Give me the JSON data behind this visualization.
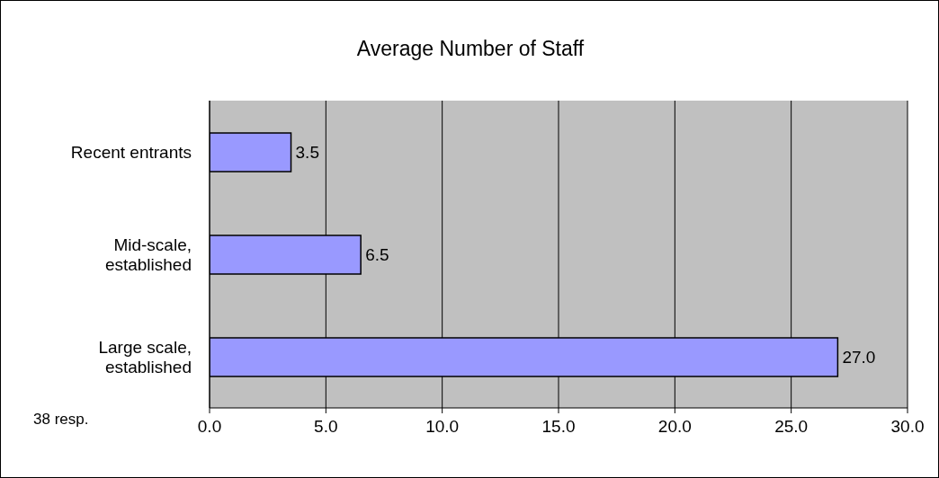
{
  "chart_data": {
    "type": "bar",
    "orientation": "horizontal",
    "title": "Average Number of Staff",
    "categories": [
      "Recent entrants",
      "Mid-scale, established",
      "Large scale, established"
    ],
    "values": [
      3.5,
      6.5,
      27.0
    ],
    "value_labels": [
      "3.5",
      "6.5",
      "27.0"
    ],
    "color": "#9999ff",
    "xlim": [
      0,
      30
    ],
    "xticks": [
      {
        "value": 0,
        "label": "0.0"
      },
      {
        "value": 5,
        "label": "5.0"
      },
      {
        "value": 10,
        "label": "10.0"
      },
      {
        "value": 15,
        "label": "15.0"
      },
      {
        "value": 20,
        "label": "20.0"
      },
      {
        "value": 25,
        "label": "25.0"
      },
      {
        "value": 30,
        "label": "30.0"
      }
    ],
    "grid": "x",
    "annotations": [
      "38 resp."
    ]
  }
}
